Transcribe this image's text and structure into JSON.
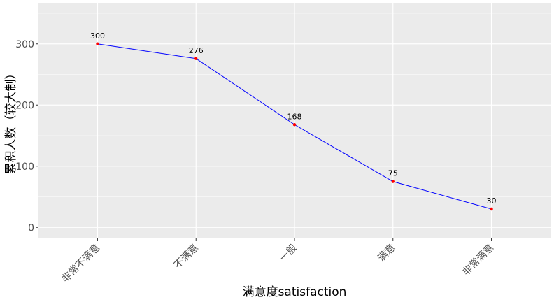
{
  "chart_data": {
    "type": "line",
    "categories": [
      "非常不满意",
      "不满意",
      "一般",
      "满意",
      "非常满意"
    ],
    "values": [
      300,
      276,
      168,
      75,
      30
    ],
    "data_labels": [
      "300",
      "276",
      "168",
      "75",
      "30"
    ],
    "xlabel": "满意度satisfaction",
    "ylabel": "累积人数（较大制）",
    "ylim": [
      -18,
      366
    ],
    "yticks": [
      0,
      100,
      200,
      300
    ],
    "ytick_labels": [
      "0",
      "100",
      "200",
      "300"
    ],
    "grid": true,
    "legend": "none",
    "colors": {
      "panel": "#ebebeb",
      "grid_major": "#ffffff",
      "line": "#0000ff",
      "point": "#ff0000"
    }
  }
}
